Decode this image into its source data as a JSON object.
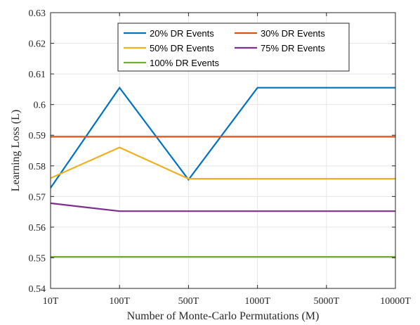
{
  "chart_data": {
    "type": "line",
    "xlabel": "Number of Monte-Carlo Permutations (M)",
    "ylabel": "Learning Loss (L)",
    "categories": [
      "10T",
      "100T",
      "500T",
      "1000T",
      "5000T",
      "10000T"
    ],
    "ylim": [
      0.54,
      0.63
    ],
    "yticks": [
      "0.54",
      "0.55",
      "0.56",
      "0.57",
      "0.58",
      "0.59",
      "0.6",
      "0.61",
      "0.62",
      "0.63"
    ],
    "grid": true,
    "legend_position": "top-center",
    "series": [
      {
        "name": "20% DR Events",
        "color": "#0072BD",
        "values": [
          0.5728,
          0.6055,
          0.5755,
          0.6055,
          0.6055,
          0.6055
        ]
      },
      {
        "name": "30% DR Events",
        "color": "#D95319",
        "values": [
          0.5895,
          0.5895,
          0.5895,
          0.5895,
          0.5895,
          0.5895
        ]
      },
      {
        "name": "50% DR Events",
        "color": "#EDB120",
        "values": [
          0.576,
          0.586,
          0.5758,
          0.5758,
          0.5758,
          0.5758
        ]
      },
      {
        "name": "75% DR Events",
        "color": "#7E2F8E",
        "values": [
          0.5678,
          0.5652,
          0.5652,
          0.5652,
          0.5652,
          0.5652
        ]
      },
      {
        "name": "100% DR Events",
        "color": "#77AC30",
        "values": [
          0.5503,
          0.5503,
          0.5503,
          0.5503,
          0.5503,
          0.5503
        ]
      }
    ]
  }
}
